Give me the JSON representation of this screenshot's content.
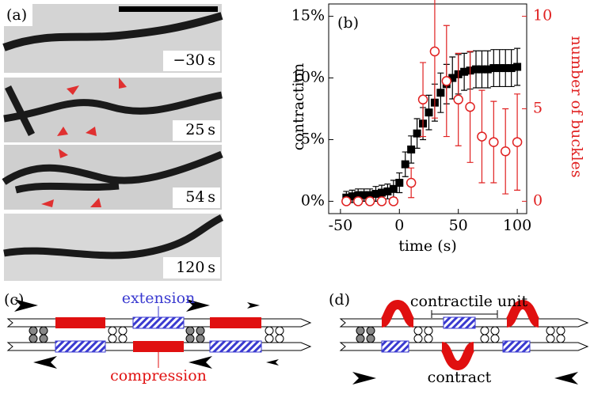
{
  "panel_a": {
    "label": "(a)",
    "timestamps": [
      "−30 s",
      "25 s",
      "54 s",
      "120 s"
    ]
  },
  "chart_data": {
    "type": "scatter",
    "label": "(b)",
    "x_label": "time (s)",
    "y_label": "contraction",
    "y2_label": "number of buckles",
    "xlim": [
      -60,
      108
    ],
    "xticks": [
      -50,
      0,
      50,
      100
    ],
    "ylim": [
      -1,
      16
    ],
    "yticks": [
      {
        "value": 0,
        "label": "0%"
      },
      {
        "value": 5,
        "label": "5%"
      },
      {
        "value": 10,
        "label": "10%"
      },
      {
        "value": 15,
        "label": "15%"
      }
    ],
    "y2lim": [
      -0.667,
      10.667
    ],
    "y2ticks": [
      0,
      5,
      10
    ],
    "series": [
      {
        "color": "#000000",
        "marker": "square",
        "x": [
          -45,
          -40,
          -35,
          -30,
          -25,
          -20,
          -15,
          -10,
          -5,
          0,
          5,
          10,
          15,
          20,
          25,
          30,
          35,
          40,
          45,
          50,
          55,
          60,
          65,
          70,
          75,
          80,
          85,
          90,
          95,
          100
        ],
        "values": [
          0.3,
          0.4,
          0.5,
          0.5,
          0.5,
          0.6,
          0.7,
          0.8,
          1.0,
          1.5,
          3.0,
          4.2,
          5.5,
          6.3,
          7.2,
          8.0,
          8.8,
          9.5,
          10.0,
          10.3,
          10.5,
          10.6,
          10.7,
          10.7,
          10.7,
          10.8,
          10.8,
          10.8,
          10.8,
          10.9
        ],
        "errors": [
          0.5,
          0.5,
          0.5,
          0.5,
          0.5,
          0.6,
          0.6,
          0.6,
          0.7,
          0.8,
          1.0,
          1.1,
          1.2,
          1.3,
          1.4,
          1.5,
          1.6,
          1.6,
          1.7,
          1.6,
          1.5,
          1.5,
          1.5,
          1.5,
          1.5,
          1.5,
          1.5,
          1.5,
          1.5,
          1.5
        ]
      },
      {
        "color": "#e02020",
        "marker": "circle",
        "axis": "y2",
        "x": [
          -45,
          -35,
          -25,
          -15,
          -5,
          10,
          20,
          30,
          40,
          50,
          60,
          70,
          80,
          90,
          100
        ],
        "values": [
          0,
          0,
          0,
          0,
          0,
          1,
          5.5,
          8.1,
          6.5,
          5.5,
          5.1,
          3.5,
          3.2,
          2.7,
          3.2
        ],
        "errors": [
          0,
          0,
          0,
          0,
          0,
          0.8,
          2.0,
          3.6,
          3.0,
          2.5,
          3.0,
          2.5,
          2.2,
          2.3,
          2.6
        ]
      }
    ]
  },
  "panel_c": {
    "label": "(c)",
    "extension": "extension",
    "compression": "compression"
  },
  "panel_d": {
    "label": "(d)",
    "contractile_unit": "contractile unit",
    "contract": "contract"
  }
}
